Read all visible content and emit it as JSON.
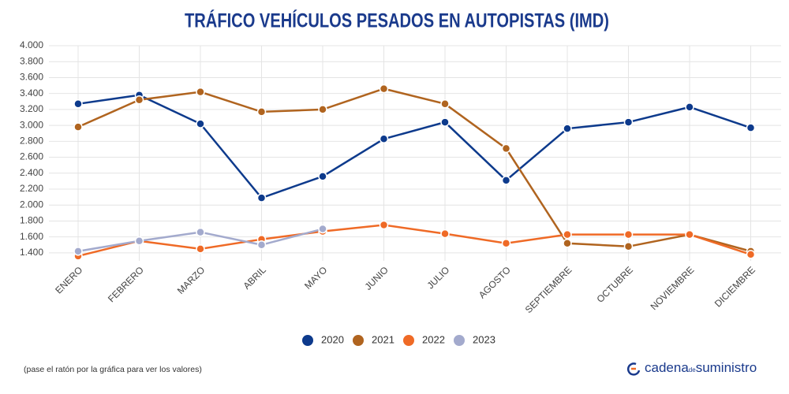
{
  "chart_data": {
    "type": "line",
    "title": "TRÁFICO VEHÍCULOS PESADOS EN AUTOPISTAS (IMD)",
    "categories": [
      "ENERO",
      "FEBRERO",
      "MARZO",
      "ABRIL",
      "MAYO",
      "JUNIO",
      "JULIO",
      "AGOSTO",
      "SEPTIEMBRE",
      "OCTUBRE",
      "NOVIEMBRE",
      "DICIEMBRE"
    ],
    "series": [
      {
        "name": "2020",
        "color": "#0d3a8c",
        "values": [
          3270,
          3380,
          3020,
          2090,
          2360,
          2830,
          3040,
          2310,
          2960,
          3040,
          3230,
          2970
        ]
      },
      {
        "name": "2021",
        "color": "#b0641f",
        "values": [
          2980,
          3320,
          3420,
          3170,
          3200,
          3460,
          3270,
          2710,
          1520,
          1480,
          1630,
          1420
        ]
      },
      {
        "name": "2022",
        "color": "#ef6a26",
        "values": [
          1360,
          1550,
          1450,
          1570,
          1670,
          1750,
          1640,
          1520,
          1630,
          1630,
          1630,
          1380
        ]
      },
      {
        "name": "2023",
        "color": "#a3aacd",
        "values": [
          1420,
          1550,
          1660,
          1500,
          1700,
          null,
          null,
          null,
          null,
          null,
          null,
          null
        ]
      }
    ],
    "ylim": [
      1300,
      4000
    ],
    "yticks": [
      {
        "value": 1400,
        "label": "1.400"
      },
      {
        "value": 1600,
        "label": "1.600"
      },
      {
        "value": 1800,
        "label": "1.800"
      },
      {
        "value": 2000,
        "label": "2.000"
      },
      {
        "value": 2200,
        "label": "2.200"
      },
      {
        "value": 2400,
        "label": "2.400"
      },
      {
        "value": 2600,
        "label": "2.600"
      },
      {
        "value": 2800,
        "label": "2.800"
      },
      {
        "value": 3000,
        "label": "3.000"
      },
      {
        "value": 3200,
        "label": "3.200"
      },
      {
        "value": 3400,
        "label": "3.400"
      },
      {
        "value": 3600,
        "label": "3.600"
      },
      {
        "value": 3800,
        "label": "3.800"
      },
      {
        "value": 4000,
        "label": "4.000"
      }
    ],
    "grid": true,
    "legend": "bottom"
  },
  "footer": {
    "note": "(pase el ratón por la gráfica para ver los valores)",
    "brand": [
      "cadena",
      "de",
      "suministro"
    ]
  }
}
